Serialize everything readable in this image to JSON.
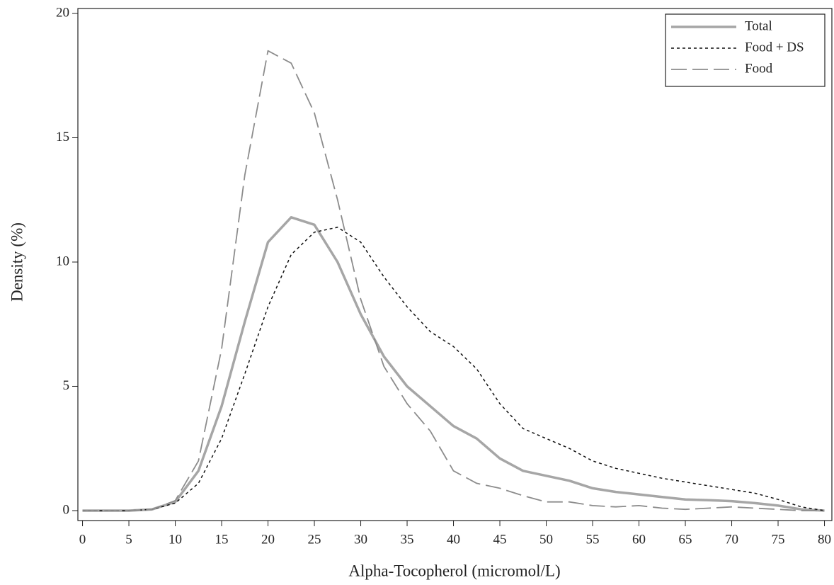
{
  "chart_data": {
    "type": "line",
    "x_label": "Alpha-Tocopherol (micromol/L)",
    "y_label": "Density (%)",
    "x": [
      0,
      2.5,
      5,
      7.5,
      10,
      12.5,
      15,
      17.5,
      20,
      22.5,
      25,
      27.5,
      30,
      32.5,
      35,
      37.5,
      40,
      42.5,
      45,
      47.5,
      50,
      52.5,
      55,
      57.5,
      60,
      62.5,
      65,
      67.5,
      70,
      72.5,
      75,
      77.5,
      80
    ],
    "series": [
      {
        "name": "Total",
        "color": "#a6a6a6",
        "style": "solid",
        "values": [
          0,
          0,
          0,
          0.05,
          0.35,
          1.6,
          4.2,
          7.6,
          10.8,
          11.8,
          11.5,
          10,
          7.9,
          6.2,
          5.0,
          4.2,
          3.4,
          2.9,
          2.1,
          1.6,
          1.4,
          1.2,
          0.9,
          0.75,
          0.65,
          0.55,
          0.45,
          0.42,
          0.38,
          0.3,
          0.2,
          0.05,
          0
        ]
      },
      {
        "name": "Food + DS",
        "color": "#111111",
        "style": "dotted",
        "values": [
          0,
          0,
          0,
          0.05,
          0.3,
          1.1,
          2.9,
          5.5,
          8.2,
          10.3,
          11.2,
          11.4,
          10.8,
          9.4,
          8.2,
          7.2,
          6.6,
          5.7,
          4.3,
          3.3,
          2.9,
          2.5,
          2.0,
          1.7,
          1.5,
          1.3,
          1.15,
          1.0,
          0.85,
          0.7,
          0.45,
          0.15,
          0
        ]
      },
      {
        "name": "Food",
        "color": "#8c8c8c",
        "style": "dashed",
        "values": [
          0,
          0,
          0,
          0.05,
          0.4,
          2.0,
          6.5,
          13.5,
          18.5,
          18.0,
          16.0,
          12.5,
          8.5,
          5.8,
          4.3,
          3.2,
          1.6,
          1.1,
          0.9,
          0.6,
          0.35,
          0.35,
          0.2,
          0.15,
          0.2,
          0.1,
          0.05,
          0.1,
          0.15,
          0.1,
          0.05,
          0,
          0
        ]
      }
    ],
    "xlim": [
      -0.5,
      80.8
    ],
    "xticks": [
      0,
      5,
      10,
      15,
      20,
      25,
      30,
      35,
      40,
      45,
      50,
      55,
      60,
      65,
      70,
      75,
      80
    ],
    "ylim": [
      -0.4,
      20.2
    ],
    "yticks": [
      0,
      5,
      10,
      15,
      20
    ],
    "legend": "top-right"
  }
}
